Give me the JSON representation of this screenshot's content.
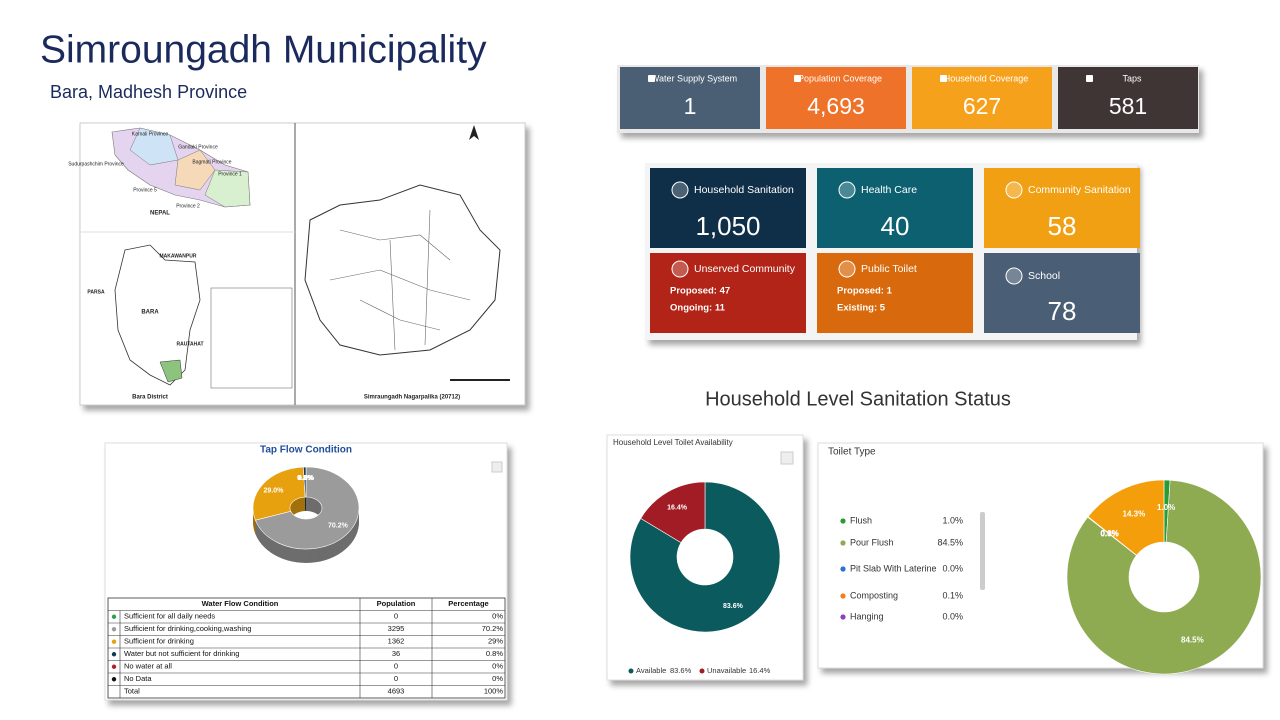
{
  "header": {
    "title": "Simroungadh Municipality",
    "subtitle": "Bara, Madhesh Province"
  },
  "map": {
    "labels": [
      "Karnali Province",
      "Gandaki Province",
      "Sudurpashchim Province",
      "Bagmati Province",
      "Province 1",
      "Province 5",
      "Province 2",
      "NEPAL",
      "MAKAWANPUR",
      "PARSA",
      "BARA",
      "RAUTAHAT",
      "Bara District",
      "Simraungadh Nagarpalika (20712)"
    ]
  },
  "coverage": [
    {
      "label": "Water Supply System",
      "value": "1",
      "color": "#4b5f74"
    },
    {
      "label": "Population Coverage",
      "value": "4,693",
      "color": "#ee7229"
    },
    {
      "label": "Household Coverage",
      "value": "627",
      "color": "#f6a11c"
    },
    {
      "label": "Taps",
      "value": "581",
      "color": "#3e3534"
    }
  ],
  "sanitation": [
    {
      "label": "Household Sanitation",
      "value": "1,050",
      "color": "#0f2e47"
    },
    {
      "label": "Health Care",
      "value": "40",
      "color": "#0d6070"
    },
    {
      "label": "Community Sanitation",
      "value": "58",
      "color": "#f0a012"
    },
    {
      "label": "Unserved Community",
      "lines": [
        "Proposed: 47",
        "Ongoing: 11"
      ],
      "color": "#b12417"
    },
    {
      "label": "Public Toilet",
      "lines": [
        "Proposed: 1",
        "Existing: 5"
      ],
      "color": "#d86a0d"
    },
    {
      "label": "School",
      "value": "78",
      "color": "#4a5e75"
    }
  ],
  "section_title": "Household Level Sanitation Status",
  "tap_table": {
    "columns": [
      "Water Flow Condition",
      "Population",
      "Percentage"
    ],
    "rows": [
      [
        "Sufficient for all daily needs",
        "0",
        "0%"
      ],
      [
        "Sufficient for drinking,cooking,washing",
        "3295",
        "70.2%"
      ],
      [
        "Sufficient for drinking",
        "1362",
        "29%"
      ],
      [
        "Water but not sufficient for drinking",
        "36",
        "0.8%"
      ],
      [
        "No water at all",
        "0",
        "0%"
      ],
      [
        "No Data",
        "0",
        "0%"
      ],
      [
        "Total",
        "4693",
        "100%"
      ]
    ]
  },
  "chart_data": [
    {
      "type": "pie3d",
      "title": "Tap Flow Condition",
      "values": [
        0,
        70.2,
        29.0,
        0.8,
        0,
        0
      ],
      "value_labels": [
        "0.0%",
        "70.2%",
        "29.0%",
        "0.8%",
        "0.0%",
        "0.0%"
      ],
      "colors": [
        "#2e9e4f",
        "#9b9b9b",
        "#e8a10e",
        "#123a55",
        "#b0202a",
        "#111111"
      ]
    },
    {
      "type": "donut",
      "title": "Household Level Toilet Availability",
      "categories": [
        "Available",
        "Unavailable"
      ],
      "values": [
        83.6,
        16.4
      ],
      "value_labels": [
        "83.6%",
        "16.4%"
      ],
      "colors": [
        "#0b5b5e",
        "#a11c25"
      ]
    },
    {
      "type": "donut",
      "title": "Toilet Type",
      "categories": [
        "Flush",
        "Pour Flush",
        "Pit Slab With Laterine",
        "Composting",
        "Hanging",
        null
      ],
      "values": [
        1.0,
        84.5,
        0.0,
        0.1,
        0.0,
        14.3
      ],
      "value_labels": [
        "1.0%",
        "84.5%",
        "0.0%",
        "0.1%",
        "0.0%",
        "14.3%"
      ],
      "colors": [
        "#2a9a36",
        "#8eab52",
        "#2b6fd8",
        "#f77d14",
        "#8a3fc4",
        "#f59e0c"
      ]
    }
  ]
}
